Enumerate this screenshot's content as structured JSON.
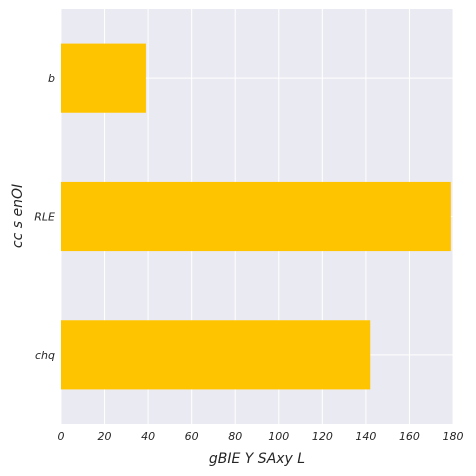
{
  "chart_data": {
    "type": "bar",
    "orientation": "horizontal",
    "categories": [
      "b",
      "RLE",
      "chq"
    ],
    "values": [
      39,
      179,
      142
    ],
    "xlabel": "gBIE Y SAxy L",
    "ylabel": "cc   s enOI",
    "xlim": [
      0,
      180
    ],
    "xticks": [
      0,
      20,
      40,
      60,
      80,
      100,
      120,
      140,
      160,
      180
    ],
    "grid": true,
    "legend": "none",
    "colors": {
      "bar": "#FFC400",
      "plot_background": "#EAEAF2",
      "grid": "#FFFFFF",
      "text": "#262626"
    }
  }
}
